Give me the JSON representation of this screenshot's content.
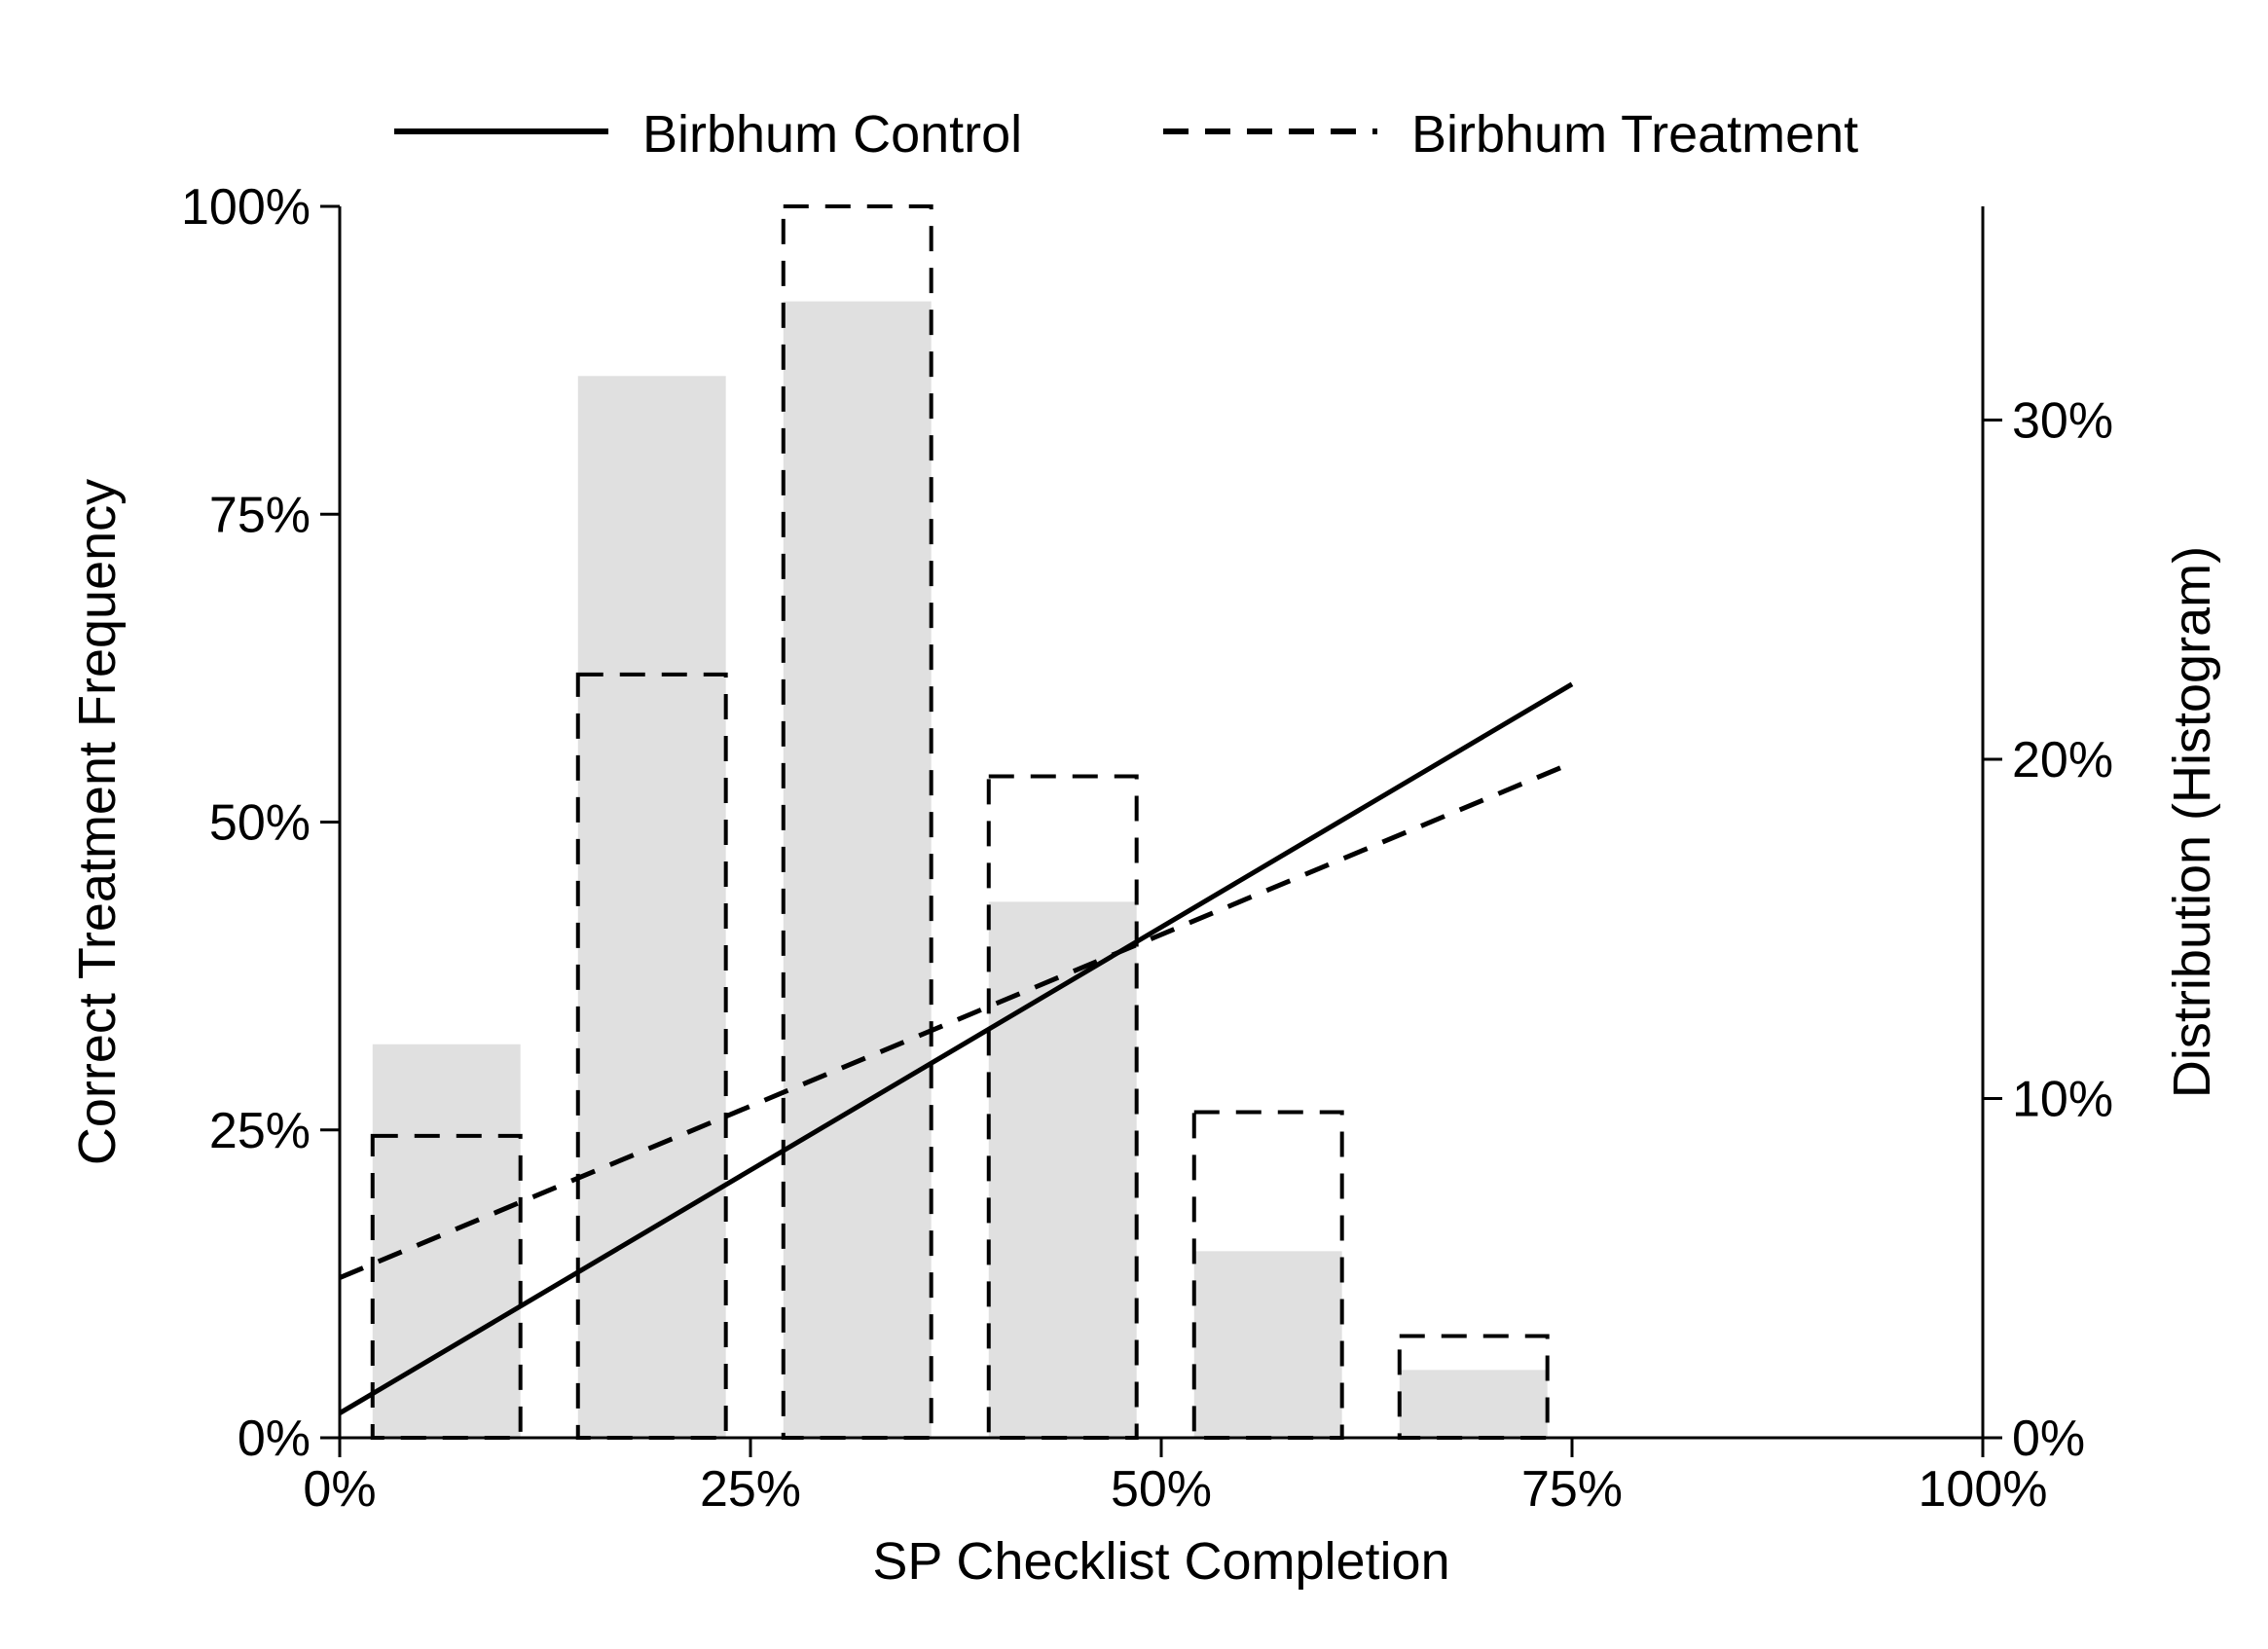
{
  "chart_data": {
    "type": "bar",
    "legend": {
      "placement": "top",
      "entries": [
        {
          "label": "Birbhum Control",
          "style": "solid"
        },
        {
          "label": "Birbhum Treatment",
          "style": "dashed"
        }
      ]
    },
    "xlabel": "SP Checklist Completion",
    "ylabel_left": "Correct Treatment Frequency",
    "ylabel_right": "Distribution (Histogram)",
    "x_ticks": [
      "0%",
      "25%",
      "50%",
      "75%",
      "100%"
    ],
    "y_left_ticks": [
      "0%",
      "25%",
      "50%",
      "75%",
      "100%"
    ],
    "y_right_ticks": [
      "0%",
      "10%",
      "20%",
      "30%"
    ],
    "xlim": [
      0,
      1
    ],
    "ylim_left": [
      0,
      1
    ],
    "ylim_right": [
      0,
      0.363
    ],
    "grid": false,
    "histogram": {
      "bin_left_edges": [
        0.02,
        0.145,
        0.27,
        0.395,
        0.52,
        0.645
      ],
      "bin_width": 0.09,
      "control": [
        0.116,
        0.313,
        0.335,
        0.158,
        0.055,
        0.02
      ],
      "treatment": [
        0.089,
        0.225,
        0.363,
        0.195,
        0.096,
        0.03
      ]
    },
    "series": [
      {
        "name": "Birbhum Control",
        "style": "solid",
        "x": [
          0,
          0.75
        ],
        "y": [
          0.02,
          0.612
        ]
      },
      {
        "name": "Birbhum Treatment",
        "style": "dashed",
        "x": [
          0,
          0.75
        ],
        "y": [
          0.13,
          0.548
        ]
      }
    ],
    "colors": {
      "axis": "#000000",
      "control_bar_fill": "#e0e0e0",
      "line": "#000000"
    }
  }
}
